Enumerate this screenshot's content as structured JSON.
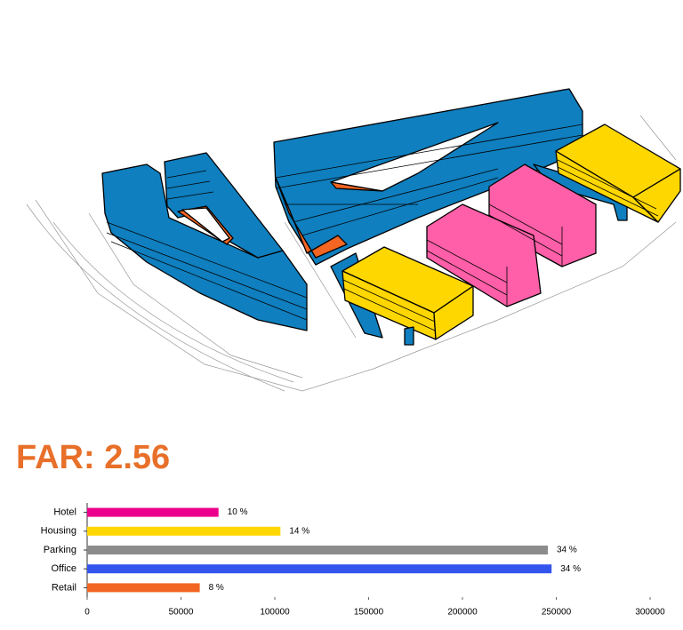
{
  "heading": "FAR: 2.56",
  "chart_data": {
    "type": "bar",
    "orientation": "horizontal",
    "categories": [
      "Hotel",
      "Housing",
      "Parking",
      "Office",
      "Retail"
    ],
    "values": [
      70000,
      103000,
      245500,
      247500,
      60000
    ],
    "colors": [
      "#ec008c",
      "#ffd700",
      "#8c8c8c",
      "#3355ee",
      "#f26522"
    ],
    "shares": [
      {
        "value": 10,
        "label": "10 %"
      },
      {
        "value": 14,
        "label": "14 %"
      },
      {
        "value": 34,
        "label": "34 %"
      },
      {
        "value": 34,
        "label": "34 %"
      },
      {
        "value": 8,
        "label": "8 %"
      }
    ],
    "xlim": [
      0,
      300000
    ],
    "xticks": [
      0,
      50000,
      100000,
      150000,
      200000,
      250000,
      300000
    ]
  }
}
